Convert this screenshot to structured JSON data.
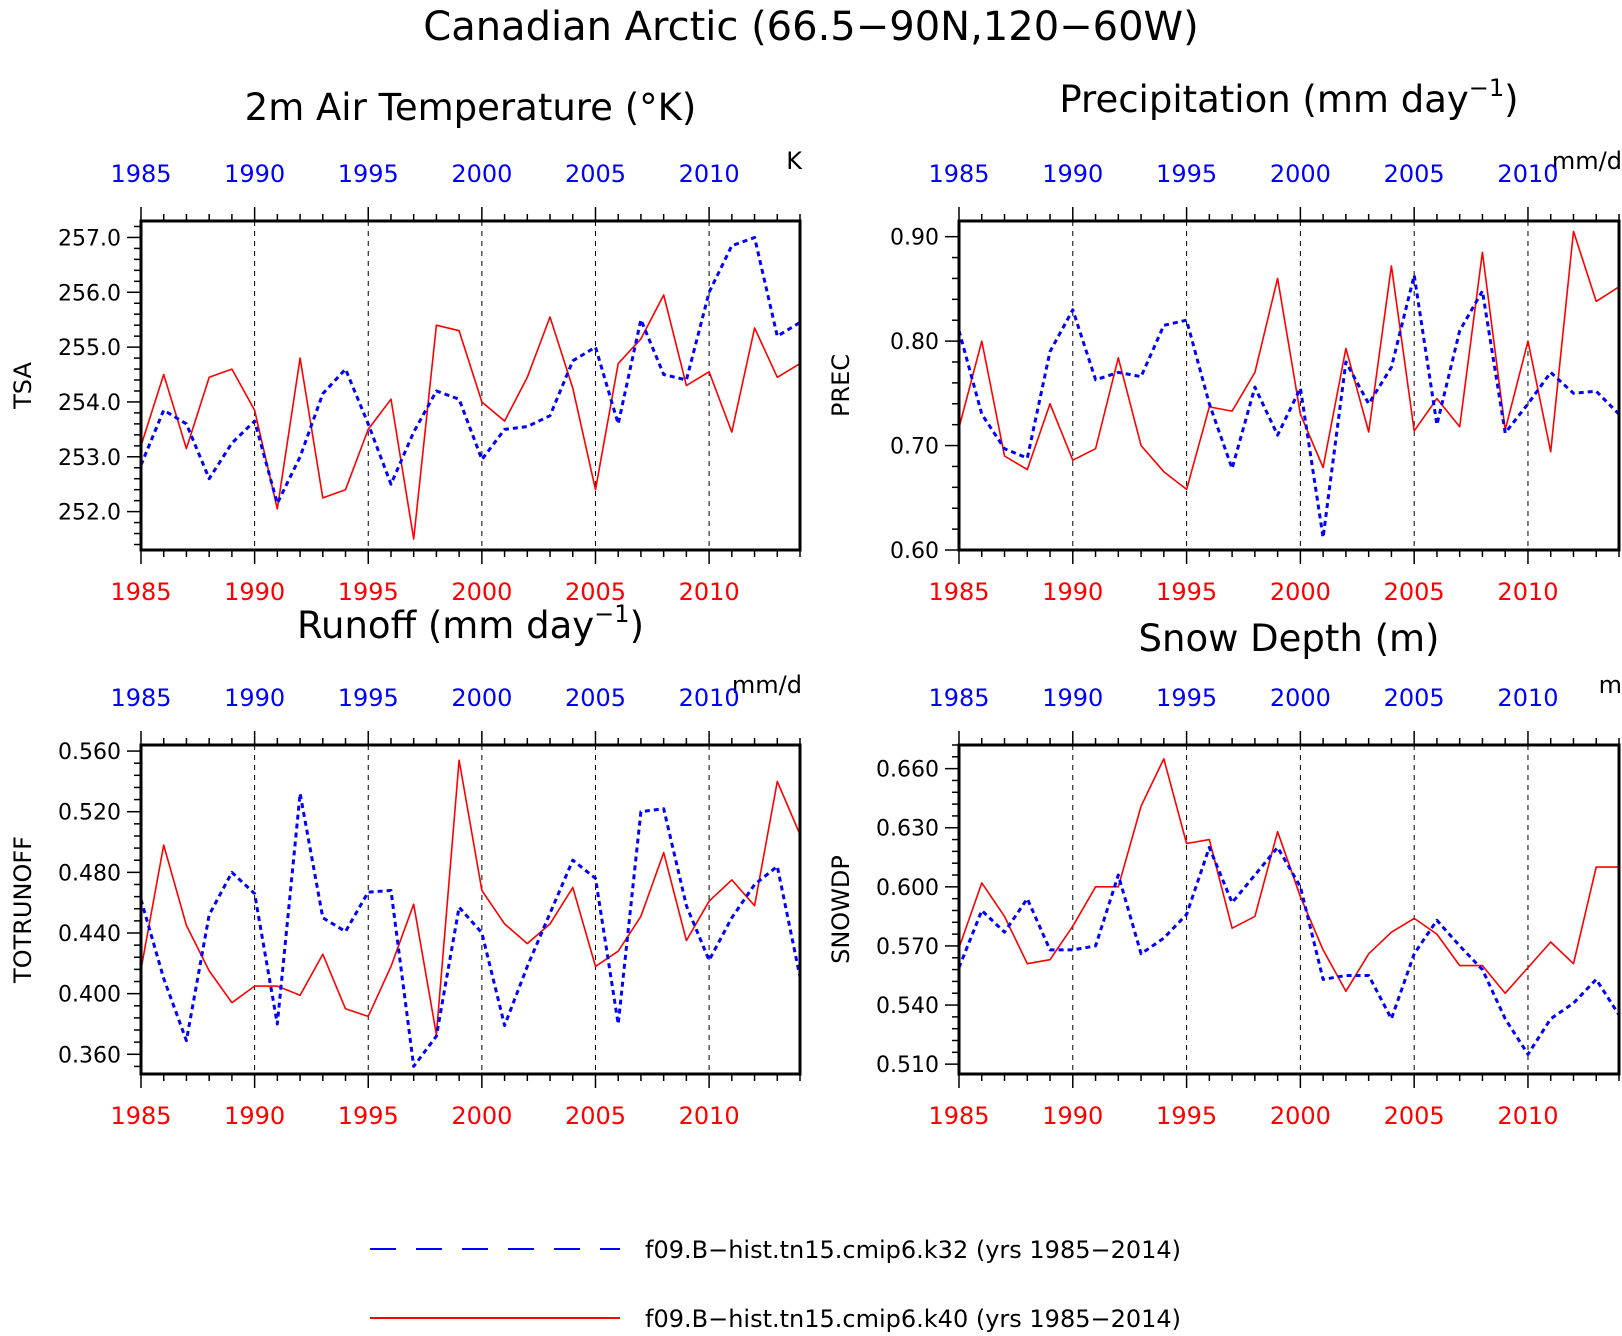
{
  "figure": {
    "title": "Canadian Arctic (66.5−90N,120−60W)",
    "legend": [
      {
        "label": "f09.B−hist.tn15.cmip6.k32 (yrs 1985−2014)",
        "color": "#0000ff",
        "style": "dashed"
      },
      {
        "label": "f09.B−hist.tn15.cmip6.k40 (yrs 1985−2014)",
        "color": "#ff0000",
        "style": "solid"
      }
    ]
  },
  "chart_data": [
    {
      "type": "line",
      "title": "2m Air Temperature (°K)",
      "units": "K",
      "ylabel": "TSA",
      "xlim": [
        1985,
        2014
      ],
      "ylim": [
        251.3,
        257.3
      ],
      "yticks": [
        252.0,
        253.0,
        254.0,
        255.0,
        256.0,
        257.0
      ],
      "ytick_labels": [
        "252.0",
        "253.0",
        "254.0",
        "255.0",
        "256.0",
        "257.0"
      ],
      "xticks": [
        1985,
        1990,
        1995,
        2000,
        2005,
        2010
      ],
      "xtick_labels": [
        "1985",
        "1990",
        "1995",
        "2000",
        "2005",
        "2010"
      ],
      "x": [
        1985,
        1986,
        1987,
        1988,
        1989,
        1990,
        1991,
        1992,
        1993,
        1994,
        1995,
        1996,
        1997,
        1998,
        1999,
        2000,
        2001,
        2002,
        2003,
        2004,
        2005,
        2006,
        2007,
        2008,
        2009,
        2010,
        2011,
        2012,
        2013,
        2014
      ],
      "series": [
        {
          "values": [
            252.85,
            253.85,
            253.6,
            252.6,
            253.25,
            253.65,
            252.15,
            253.0,
            254.15,
            254.6,
            253.6,
            252.5,
            253.45,
            254.2,
            254.05,
            252.95,
            253.5,
            253.55,
            253.75,
            254.75,
            255.0,
            253.6,
            255.5,
            254.5,
            254.4,
            256.0,
            256.85,
            257.0,
            255.2,
            255.45
          ]
        },
        {
          "values": [
            253.2,
            254.5,
            253.15,
            254.45,
            254.6,
            253.85,
            252.05,
            254.8,
            252.25,
            252.4,
            253.5,
            254.05,
            251.5,
            255.4,
            255.3,
            254.0,
            253.65,
            254.45,
            255.55,
            254.25,
            252.4,
            254.7,
            255.15,
            255.95,
            254.3,
            254.55,
            253.45,
            255.35,
            254.45,
            254.7
          ]
        }
      ]
    },
    {
      "type": "line",
      "title": "Precipitation (mm day⁻¹)",
      "units": "mm/d",
      "ylabel": "PREC",
      "xlim": [
        1985,
        2014
      ],
      "ylim": [
        0.6,
        0.915
      ],
      "yticks": [
        0.6,
        0.7,
        0.8,
        0.9
      ],
      "ytick_labels": [
        "0.60",
        "0.70",
        "0.80",
        "0.90"
      ],
      "xticks": [
        1985,
        1990,
        1995,
        2000,
        2005,
        2010
      ],
      "xtick_labels": [
        "1985",
        "1990",
        "1995",
        "2000",
        "2005",
        "2010"
      ],
      "x": [
        1985,
        1986,
        1987,
        1988,
        1989,
        1990,
        1991,
        1992,
        1993,
        1994,
        1995,
        1996,
        1997,
        1998,
        1999,
        2000,
        2001,
        2002,
        2003,
        2004,
        2005,
        2006,
        2007,
        2008,
        2009,
        2010,
        2011,
        2012,
        2013,
        2014
      ],
      "series": [
        {
          "values": [
            0.81,
            0.73,
            0.697,
            0.688,
            0.79,
            0.83,
            0.763,
            0.77,
            0.766,
            0.815,
            0.82,
            0.74,
            0.678,
            0.756,
            0.71,
            0.755,
            0.612,
            0.78,
            0.74,
            0.775,
            0.863,
            0.72,
            0.81,
            0.848,
            0.712,
            0.74,
            0.77,
            0.75,
            0.752,
            0.73
          ]
        },
        {
          "values": [
            0.717,
            0.8,
            0.69,
            0.677,
            0.74,
            0.686,
            0.697,
            0.784,
            0.7,
            0.675,
            0.658,
            0.737,
            0.733,
            0.77,
            0.86,
            0.73,
            0.679,
            0.793,
            0.713,
            0.872,
            0.714,
            0.745,
            0.718,
            0.885,
            0.715,
            0.8,
            0.694,
            0.905,
            0.838,
            0.852
          ]
        }
      ]
    },
    {
      "type": "line",
      "title": "Runoff (mm day⁻¹)",
      "units": "mm/d",
      "ylabel": "TOTRUNOFF",
      "xlim": [
        1985,
        2014
      ],
      "ylim": [
        0.347,
        0.564
      ],
      "yticks": [
        0.36,
        0.4,
        0.44,
        0.48,
        0.52,
        0.56
      ],
      "ytick_labels": [
        "0.360",
        "0.400",
        "0.440",
        "0.480",
        "0.520",
        "0.560"
      ],
      "xticks": [
        1985,
        1990,
        1995,
        2000,
        2005,
        2010
      ],
      "xtick_labels": [
        "1985",
        "1990",
        "1995",
        "2000",
        "2005",
        "2010"
      ],
      "x": [
        1985,
        1986,
        1987,
        1988,
        1989,
        1990,
        1991,
        1992,
        1993,
        1994,
        1995,
        1996,
        1997,
        1998,
        1999,
        2000,
        2001,
        2002,
        2003,
        2004,
        2005,
        2006,
        2007,
        2008,
        2009,
        2010,
        2011,
        2012,
        2013,
        2014
      ],
      "series": [
        {
          "values": [
            0.462,
            0.41,
            0.369,
            0.452,
            0.48,
            0.466,
            0.38,
            0.532,
            0.45,
            0.441,
            0.467,
            0.468,
            0.352,
            0.372,
            0.457,
            0.44,
            0.379,
            0.418,
            0.453,
            0.488,
            0.476,
            0.38,
            0.52,
            0.522,
            0.458,
            0.422,
            0.45,
            0.472,
            0.484,
            0.411
          ]
        },
        {
          "values": [
            0.416,
            0.498,
            0.445,
            0.415,
            0.394,
            0.405,
            0.405,
            0.399,
            0.426,
            0.39,
            0.385,
            0.418,
            0.459,
            0.373,
            0.554,
            0.468,
            0.446,
            0.433,
            0.446,
            0.47,
            0.418,
            0.428,
            0.451,
            0.493,
            0.435,
            0.461,
            0.475,
            0.458,
            0.54,
            0.505
          ]
        }
      ]
    },
    {
      "type": "line",
      "title": "Snow Depth (m)",
      "units": "m",
      "ylabel": "SNOWDP",
      "xlim": [
        1985,
        2014
      ],
      "ylim": [
        0.505,
        0.672
      ],
      "yticks": [
        0.51,
        0.54,
        0.57,
        0.6,
        0.63,
        0.66
      ],
      "ytick_labels": [
        "0.510",
        "0.540",
        "0.570",
        "0.600",
        "0.630",
        "0.660"
      ],
      "xticks": [
        1985,
        1990,
        1995,
        2000,
        2005,
        2010
      ],
      "xtick_labels": [
        "1985",
        "1990",
        "1995",
        "2000",
        "2005",
        "2010"
      ],
      "x": [
        1985,
        1986,
        1987,
        1988,
        1989,
        1990,
        1991,
        1992,
        1993,
        1994,
        1995,
        1996,
        1997,
        1998,
        1999,
        2000,
        2001,
        2002,
        2003,
        2004,
        2005,
        2006,
        2007,
        2008,
        2009,
        2010,
        2011,
        2012,
        2013,
        2014
      ],
      "series": [
        {
          "values": [
            0.559,
            0.588,
            0.577,
            0.594,
            0.568,
            0.568,
            0.57,
            0.606,
            0.566,
            0.574,
            0.586,
            0.62,
            0.592,
            0.606,
            0.62,
            0.6,
            0.553,
            0.555,
            0.555,
            0.533,
            0.566,
            0.583,
            0.57,
            0.558,
            0.533,
            0.515,
            0.533,
            0.541,
            0.553,
            0.535
          ]
        },
        {
          "values": [
            0.569,
            0.602,
            0.585,
            0.561,
            0.563,
            0.58,
            0.6,
            0.6,
            0.641,
            0.665,
            0.622,
            0.624,
            0.579,
            0.585,
            0.628,
            0.595,
            0.568,
            0.547,
            0.566,
            0.577,
            0.584,
            0.576,
            0.56,
            0.56,
            0.546,
            0.559,
            0.572,
            0.561,
            0.61,
            0.61
          ]
        }
      ]
    }
  ]
}
